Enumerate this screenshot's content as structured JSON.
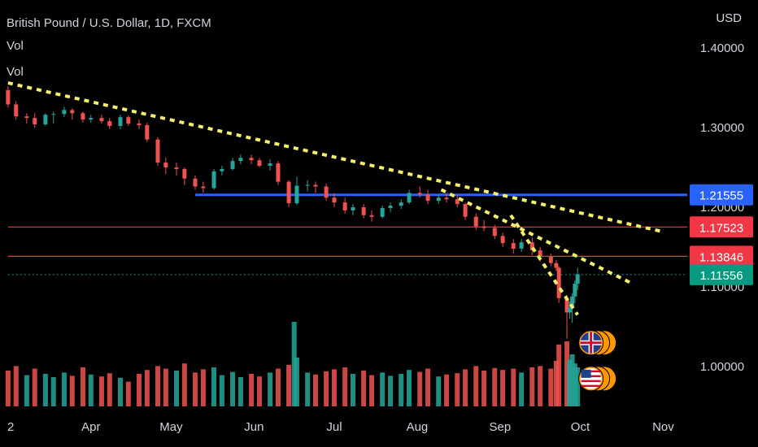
{
  "header": {
    "title": "British Pound / U.S. Dollar, 1D, FXCM",
    "indicator1": "Vol",
    "indicator2": "Vol",
    "currency": "USD"
  },
  "colors": {
    "background": "#000000",
    "up": "#26a69a",
    "down": "#ef5350",
    "trendline": "#f5f06a",
    "support_blue": "#2962ff",
    "resistance_red": "#f23645",
    "last_price": "#089981",
    "axis_text": "#d1d4dc"
  },
  "chart_data": {
    "type": "candlestick",
    "symbol": "GBPUSD",
    "timeframe": "1D",
    "x_tick_labels": [
      "2",
      "Apr",
      "May",
      "Jun",
      "Jul",
      "Aug",
      "Sep",
      "Oct",
      "Nov"
    ],
    "y_tick_labels": [
      "1.40000",
      "1.30000",
      "1.20000",
      "1.10000",
      "1.00000"
    ],
    "y_ticks": [
      1.4,
      1.3,
      1.2,
      1.1,
      1.0
    ],
    "ylim": [
      0.94,
      1.46
    ],
    "grid": false,
    "price_labels": [
      {
        "value": "1.21555",
        "kind": "support_blue"
      },
      {
        "value": "1.17523",
        "kind": "resistance_red"
      },
      {
        "value": "1.13846",
        "kind": "resistance_red"
      },
      {
        "value": "1.11556",
        "kind": "last_price"
      }
    ],
    "horizontal_levels": [
      {
        "price": 1.21555,
        "from": "2022-05-10",
        "kind": "support_blue"
      },
      {
        "price": 1.17523,
        "from": "2022-03-01",
        "kind": "resistance_red"
      },
      {
        "price": 1.13846,
        "from": "2022-03-01",
        "kind": "resistance_red"
      },
      {
        "price": 1.11556,
        "from": "2022-03-01",
        "kind": "last_price"
      }
    ],
    "trendlines": [
      {
        "from": [
          "2022-03-01",
          1.356
        ],
        "to": [
          "2022-10-31",
          1.17
        ]
      },
      {
        "from": [
          "2022-08-10",
          1.222
        ],
        "to": [
          "2022-10-20",
          1.105
        ]
      },
      {
        "from": [
          "2022-09-05",
          1.19
        ],
        "to": [
          "2022-09-30",
          1.065
        ]
      }
    ],
    "ohlc": [
      [
        "2022-03-01",
        1.347,
        1.352,
        1.325,
        1.329
      ],
      [
        "2022-03-04",
        1.329,
        1.333,
        1.31,
        1.314
      ],
      [
        "2022-03-08",
        1.314,
        1.318,
        1.305,
        1.312
      ],
      [
        "2022-03-11",
        1.312,
        1.318,
        1.3,
        1.304
      ],
      [
        "2022-03-15",
        1.304,
        1.318,
        1.302,
        1.316
      ],
      [
        "2022-03-18",
        1.316,
        1.32,
        1.305,
        1.317
      ],
      [
        "2022-03-22",
        1.317,
        1.326,
        1.313,
        1.322
      ],
      [
        "2022-03-25",
        1.322,
        1.324,
        1.31,
        1.318
      ],
      [
        "2022-03-29",
        1.318,
        1.32,
        1.306,
        1.31
      ],
      [
        "2022-04-01",
        1.31,
        1.316,
        1.306,
        1.312
      ],
      [
        "2022-04-05",
        1.312,
        1.316,
        1.305,
        1.308
      ],
      [
        "2022-04-08",
        1.308,
        1.312,
        1.298,
        1.302
      ],
      [
        "2022-04-12",
        1.302,
        1.316,
        1.298,
        1.313
      ],
      [
        "2022-04-15",
        1.313,
        1.315,
        1.302,
        1.305
      ],
      [
        "2022-04-19",
        1.305,
        1.31,
        1.298,
        1.303
      ],
      [
        "2022-04-22",
        1.303,
        1.306,
        1.282,
        1.285
      ],
      [
        "2022-04-26",
        1.285,
        1.288,
        1.252,
        1.256
      ],
      [
        "2022-04-29",
        1.256,
        1.262,
        1.242,
        1.25
      ],
      [
        "2022-05-03",
        1.25,
        1.256,
        1.24,
        1.248
      ],
      [
        "2022-05-06",
        1.248,
        1.25,
        1.228,
        1.236
      ],
      [
        "2022-05-10",
        1.236,
        1.24,
        1.222,
        1.226
      ],
      [
        "2022-05-13",
        1.226,
        1.232,
        1.218,
        1.224
      ],
      [
        "2022-05-17",
        1.224,
        1.248,
        1.222,
        1.245
      ],
      [
        "2022-05-20",
        1.245,
        1.252,
        1.24,
        1.248
      ],
      [
        "2022-05-24",
        1.248,
        1.262,
        1.246,
        1.258
      ],
      [
        "2022-05-27",
        1.258,
        1.266,
        1.254,
        1.262
      ],
      [
        "2022-05-31",
        1.262,
        1.266,
        1.254,
        1.259
      ],
      [
        "2022-06-03",
        1.259,
        1.262,
        1.25,
        1.252
      ],
      [
        "2022-06-07",
        1.252,
        1.26,
        1.246,
        1.255
      ],
      [
        "2022-06-10",
        1.255,
        1.258,
        1.228,
        1.232
      ],
      [
        "2022-06-14",
        1.232,
        1.234,
        1.2,
        1.205
      ],
      [
        "2022-06-17",
        1.205,
        1.238,
        1.203,
        1.227
      ],
      [
        "2022-06-21",
        1.227,
        1.234,
        1.22,
        1.228
      ],
      [
        "2022-06-24",
        1.228,
        1.232,
        1.218,
        1.226
      ],
      [
        "2022-06-28",
        1.226,
        1.23,
        1.208,
        1.212
      ],
      [
        "2022-07-01",
        1.212,
        1.218,
        1.2,
        1.206
      ],
      [
        "2022-07-05",
        1.206,
        1.212,
        1.192,
        1.196
      ],
      [
        "2022-07-08",
        1.196,
        1.204,
        1.19,
        1.2
      ],
      [
        "2022-07-12",
        1.2,
        1.204,
        1.186,
        1.19
      ],
      [
        "2022-07-15",
        1.19,
        1.196,
        1.182,
        1.188
      ],
      [
        "2022-07-19",
        1.188,
        1.202,
        1.186,
        1.199
      ],
      [
        "2022-07-22",
        1.199,
        1.206,
        1.194,
        1.202
      ],
      [
        "2022-07-26",
        1.202,
        1.21,
        1.198,
        1.206
      ],
      [
        "2022-07-29",
        1.206,
        1.222,
        1.204,
        1.218
      ],
      [
        "2022-08-02",
        1.218,
        1.226,
        1.212,
        1.216
      ],
      [
        "2022-08-05",
        1.216,
        1.222,
        1.204,
        1.208
      ],
      [
        "2022-08-09",
        1.208,
        1.216,
        1.204,
        1.212
      ],
      [
        "2022-08-12",
        1.212,
        1.218,
        1.206,
        1.21
      ],
      [
        "2022-08-16",
        1.21,
        1.216,
        1.2,
        1.204
      ],
      [
        "2022-08-19",
        1.204,
        1.206,
        1.184,
        1.188
      ],
      [
        "2022-08-23",
        1.188,
        1.192,
        1.172,
        1.176
      ],
      [
        "2022-08-26",
        1.176,
        1.184,
        1.17,
        1.174
      ],
      [
        "2022-08-30",
        1.174,
        1.178,
        1.16,
        1.164
      ],
      [
        "2022-09-02",
        1.164,
        1.168,
        1.15,
        1.155
      ],
      [
        "2022-09-06",
        1.155,
        1.16,
        1.142,
        1.148
      ],
      [
        "2022-09-09",
        1.148,
        1.16,
        1.144,
        1.156
      ],
      [
        "2022-09-13",
        1.156,
        1.162,
        1.14,
        1.146
      ],
      [
        "2022-09-16",
        1.146,
        1.15,
        1.132,
        1.138
      ],
      [
        "2022-09-20",
        1.138,
        1.142,
        1.126,
        1.13
      ],
      [
        "2022-09-22",
        1.13,
        1.134,
        1.12,
        1.124
      ],
      [
        "2022-09-23",
        1.124,
        1.126,
        1.08,
        1.086
      ],
      [
        "2022-09-26",
        1.086,
        1.09,
        1.035,
        1.068
      ],
      [
        "2022-09-27",
        1.068,
        1.082,
        1.06,
        1.074
      ],
      [
        "2022-09-28",
        1.074,
        1.092,
        1.055,
        1.088
      ],
      [
        "2022-09-29",
        1.088,
        1.108,
        1.08,
        1.104
      ],
      [
        "2022-09-30",
        1.104,
        1.124,
        1.096,
        1.116
      ]
    ],
    "volume": [
      [
        "2022-03-01",
        0.55,
        "down"
      ],
      [
        "2022-03-04",
        0.62,
        "down"
      ],
      [
        "2022-03-08",
        0.48,
        "up"
      ],
      [
        "2022-03-11",
        0.58,
        "down"
      ],
      [
        "2022-03-15",
        0.5,
        "up"
      ],
      [
        "2022-03-18",
        0.45,
        "up"
      ],
      [
        "2022-03-22",
        0.52,
        "up"
      ],
      [
        "2022-03-25",
        0.47,
        "down"
      ],
      [
        "2022-03-29",
        0.6,
        "down"
      ],
      [
        "2022-04-01",
        0.49,
        "up"
      ],
      [
        "2022-04-05",
        0.46,
        "down"
      ],
      [
        "2022-04-08",
        0.51,
        "down"
      ],
      [
        "2022-04-12",
        0.44,
        "up"
      ],
      [
        "2022-04-15",
        0.38,
        "down"
      ],
      [
        "2022-04-19",
        0.5,
        "down"
      ],
      [
        "2022-04-22",
        0.56,
        "down"
      ],
      [
        "2022-04-26",
        0.62,
        "down"
      ],
      [
        "2022-04-29",
        0.58,
        "down"
      ],
      [
        "2022-05-03",
        0.55,
        "up"
      ],
      [
        "2022-05-06",
        0.66,
        "down"
      ],
      [
        "2022-05-10",
        0.52,
        "down"
      ],
      [
        "2022-05-13",
        0.57,
        "down"
      ],
      [
        "2022-05-17",
        0.6,
        "up"
      ],
      [
        "2022-05-20",
        0.48,
        "up"
      ],
      [
        "2022-05-24",
        0.53,
        "up"
      ],
      [
        "2022-05-27",
        0.45,
        "up"
      ],
      [
        "2022-05-31",
        0.5,
        "down"
      ],
      [
        "2022-06-03",
        0.46,
        "down"
      ],
      [
        "2022-06-07",
        0.52,
        "up"
      ],
      [
        "2022-06-10",
        0.58,
        "down"
      ],
      [
        "2022-06-14",
        0.64,
        "down"
      ],
      [
        "2022-06-16",
        1.3,
        "up"
      ],
      [
        "2022-06-17",
        0.75,
        "up"
      ],
      [
        "2022-06-21",
        0.52,
        "up"
      ],
      [
        "2022-06-24",
        0.49,
        "down"
      ],
      [
        "2022-06-28",
        0.54,
        "down"
      ],
      [
        "2022-07-01",
        0.57,
        "down"
      ],
      [
        "2022-07-05",
        0.6,
        "down"
      ],
      [
        "2022-07-08",
        0.5,
        "up"
      ],
      [
        "2022-07-12",
        0.55,
        "down"
      ],
      [
        "2022-07-15",
        0.48,
        "down"
      ],
      [
        "2022-07-19",
        0.52,
        "up"
      ],
      [
        "2022-07-22",
        0.47,
        "up"
      ],
      [
        "2022-07-26",
        0.5,
        "up"
      ],
      [
        "2022-07-29",
        0.56,
        "up"
      ],
      [
        "2022-08-02",
        0.53,
        "down"
      ],
      [
        "2022-08-05",
        0.58,
        "down"
      ],
      [
        "2022-08-09",
        0.46,
        "up"
      ],
      [
        "2022-08-12",
        0.49,
        "down"
      ],
      [
        "2022-08-16",
        0.51,
        "down"
      ],
      [
        "2022-08-19",
        0.57,
        "down"
      ],
      [
        "2022-08-23",
        0.62,
        "down"
      ],
      [
        "2022-08-26",
        0.55,
        "down"
      ],
      [
        "2022-08-30",
        0.59,
        "down"
      ],
      [
        "2022-09-02",
        0.56,
        "down"
      ],
      [
        "2022-09-06",
        0.58,
        "down"
      ],
      [
        "2022-09-09",
        0.52,
        "up"
      ],
      [
        "2022-09-13",
        0.6,
        "down"
      ],
      [
        "2022-09-16",
        0.62,
        "down"
      ],
      [
        "2022-09-20",
        0.58,
        "down"
      ],
      [
        "2022-09-22",
        0.7,
        "down"
      ],
      [
        "2022-09-23",
        0.95,
        "down"
      ],
      [
        "2022-09-26",
        1.0,
        "down"
      ],
      [
        "2022-09-27",
        0.72,
        "up"
      ],
      [
        "2022-09-28",
        0.8,
        "up"
      ],
      [
        "2022-09-29",
        0.66,
        "up"
      ],
      [
        "2022-09-30",
        0.6,
        "up"
      ]
    ],
    "events": [
      {
        "date": "2022-10-05",
        "level": 1.03,
        "flag": "GB"
      },
      {
        "date": "2022-10-05",
        "level": 0.985,
        "flag": "US"
      }
    ]
  }
}
